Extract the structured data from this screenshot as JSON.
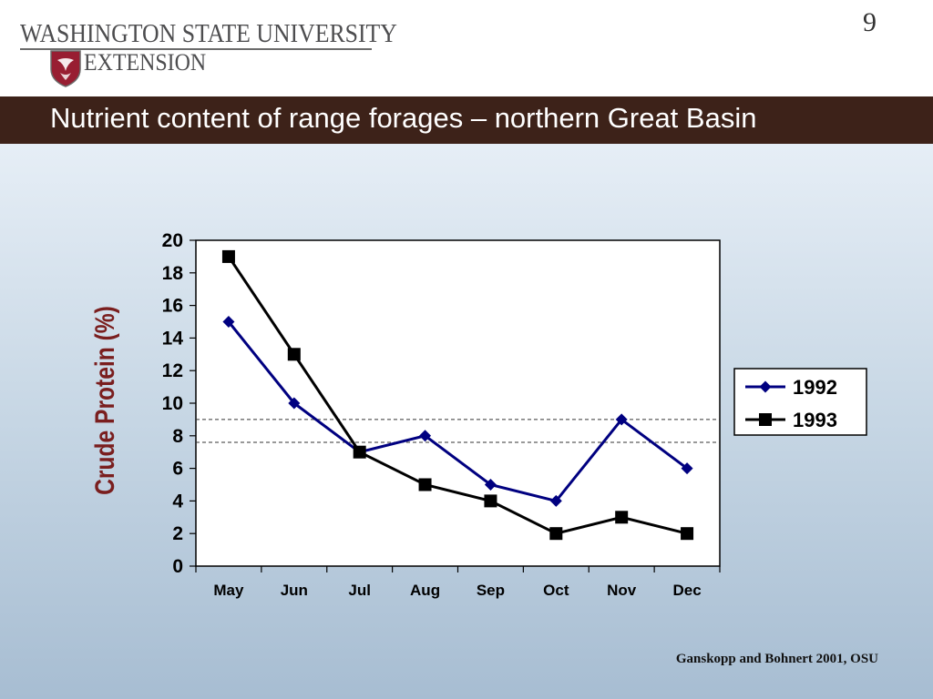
{
  "header": {
    "logo_line1": "WASHINGTON STATE UNIVERSITY",
    "logo_line2": "EXTENSION",
    "page_number": "9"
  },
  "slide_title": "Nutrient content of range forages – northern Great Basin",
  "citation": "Ganskopp and Bohnert 2001, OSU",
  "chart_data": {
    "type": "line",
    "categories": [
      "May",
      "Jun",
      "Jul",
      "Aug",
      "Sep",
      "Oct",
      "Nov",
      "Dec"
    ],
    "series": [
      {
        "name": "1992",
        "values": [
          15,
          10,
          7,
          8,
          5,
          4,
          9,
          6
        ],
        "color": "#000080",
        "marker": "diamond"
      },
      {
        "name": "1993",
        "values": [
          19,
          13,
          7,
          5,
          4,
          2,
          3,
          2
        ],
        "color": "#000000",
        "marker": "square"
      }
    ],
    "ylabel": "Crude Protein (%)",
    "yticks": [
      0,
      2,
      4,
      6,
      8,
      10,
      12,
      14,
      16,
      18,
      20
    ],
    "ylim": [
      0,
      20
    ],
    "reference_lines": [
      9,
      7.6
    ],
    "legend_position": "right",
    "ylabel_color": "#7a1e1e"
  }
}
